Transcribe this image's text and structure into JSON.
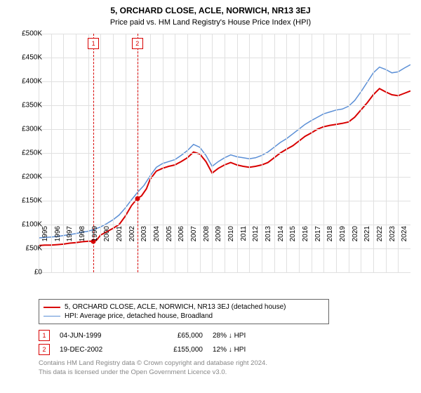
{
  "title": "5, ORCHARD CLOSE, ACLE, NORWICH, NR13 3EJ",
  "subtitle": "Price paid vs. HM Land Registry's House Price Index (HPI)",
  "chart": {
    "type": "line",
    "background_color": "#ffffff",
    "grid_color": "#e0e0e0",
    "x": {
      "min": 1995,
      "max": 2025,
      "ticks": [
        1995,
        1996,
        1997,
        1998,
        1999,
        2000,
        2001,
        2002,
        2003,
        2004,
        2005,
        2006,
        2007,
        2008,
        2009,
        2010,
        2011,
        2012,
        2013,
        2014,
        2015,
        2016,
        2017,
        2018,
        2019,
        2020,
        2021,
        2022,
        2023,
        2024
      ]
    },
    "y": {
      "min": 0,
      "max": 500000,
      "step": 50000,
      "prefix": "£",
      "tick_labels": [
        "£0",
        "£50K",
        "£100K",
        "£150K",
        "£200K",
        "£250K",
        "£300K",
        "£350K",
        "£400K",
        "£450K",
        "£500K"
      ]
    },
    "label_fontsize": 10,
    "series": [
      {
        "name": "5, ORCHARD CLOSE, ACLE, NORWICH, NR13 3EJ (detached house)",
        "color": "#d80000",
        "width": 2,
        "data": [
          [
            1995.0,
            56000
          ],
          [
            1995.5,
            57000
          ],
          [
            1996.0,
            57000
          ],
          [
            1996.5,
            58000
          ],
          [
            1997.0,
            59000
          ],
          [
            1997.5,
            61000
          ],
          [
            1998.0,
            62000
          ],
          [
            1998.5,
            64000
          ],
          [
            1999.0,
            65000
          ],
          [
            1999.42,
            65000
          ],
          [
            1999.7,
            68000
          ],
          [
            2000.0,
            78000
          ],
          [
            2000.5,
            85000
          ],
          [
            2001.0,
            92000
          ],
          [
            2001.5,
            100000
          ],
          [
            2002.0,
            118000
          ],
          [
            2002.5,
            140000
          ],
          [
            2002.97,
            155000
          ],
          [
            2003.3,
            160000
          ],
          [
            2003.7,
            175000
          ],
          [
            2004.0,
            195000
          ],
          [
            2004.5,
            212000
          ],
          [
            2005.0,
            218000
          ],
          [
            2005.5,
            222000
          ],
          [
            2006.0,
            225000
          ],
          [
            2006.5,
            232000
          ],
          [
            2007.0,
            240000
          ],
          [
            2007.5,
            252000
          ],
          [
            2008.0,
            248000
          ],
          [
            2008.5,
            232000
          ],
          [
            2009.0,
            208000
          ],
          [
            2009.5,
            218000
          ],
          [
            2010.0,
            225000
          ],
          [
            2010.5,
            230000
          ],
          [
            2011.0,
            225000
          ],
          [
            2011.5,
            222000
          ],
          [
            2012.0,
            220000
          ],
          [
            2012.5,
            222000
          ],
          [
            2013.0,
            225000
          ],
          [
            2013.5,
            230000
          ],
          [
            2014.0,
            240000
          ],
          [
            2014.5,
            250000
          ],
          [
            2015.0,
            258000
          ],
          [
            2015.5,
            265000
          ],
          [
            2016.0,
            275000
          ],
          [
            2016.5,
            285000
          ],
          [
            2017.0,
            292000
          ],
          [
            2017.5,
            300000
          ],
          [
            2018.0,
            305000
          ],
          [
            2018.5,
            308000
          ],
          [
            2019.0,
            310000
          ],
          [
            2019.5,
            312000
          ],
          [
            2020.0,
            315000
          ],
          [
            2020.5,
            325000
          ],
          [
            2021.0,
            340000
          ],
          [
            2021.5,
            355000
          ],
          [
            2022.0,
            372000
          ],
          [
            2022.5,
            385000
          ],
          [
            2023.0,
            378000
          ],
          [
            2023.5,
            372000
          ],
          [
            2024.0,
            370000
          ],
          [
            2024.5,
            375000
          ],
          [
            2025.0,
            380000
          ]
        ]
      },
      {
        "name": "HPI: Average price, detached house, Broadland",
        "color": "#5b8fd6",
        "width": 1.5,
        "data": [
          [
            1995.0,
            72000
          ],
          [
            1995.5,
            73000
          ],
          [
            1996.0,
            74000
          ],
          [
            1996.5,
            75000
          ],
          [
            1997.0,
            77000
          ],
          [
            1997.5,
            79000
          ],
          [
            1998.0,
            81000
          ],
          [
            1998.5,
            84000
          ],
          [
            1999.0,
            86000
          ],
          [
            1999.5,
            90000
          ],
          [
            2000.0,
            95000
          ],
          [
            2000.5,
            102000
          ],
          [
            2001.0,
            110000
          ],
          [
            2001.5,
            120000
          ],
          [
            2002.0,
            135000
          ],
          [
            2002.5,
            152000
          ],
          [
            2003.0,
            168000
          ],
          [
            2003.5,
            182000
          ],
          [
            2004.0,
            202000
          ],
          [
            2004.5,
            220000
          ],
          [
            2005.0,
            228000
          ],
          [
            2005.5,
            232000
          ],
          [
            2006.0,
            236000
          ],
          [
            2006.5,
            245000
          ],
          [
            2007.0,
            255000
          ],
          [
            2007.5,
            268000
          ],
          [
            2008.0,
            262000
          ],
          [
            2008.5,
            245000
          ],
          [
            2009.0,
            222000
          ],
          [
            2009.5,
            232000
          ],
          [
            2010.0,
            240000
          ],
          [
            2010.5,
            246000
          ],
          [
            2011.0,
            242000
          ],
          [
            2011.5,
            240000
          ],
          [
            2012.0,
            238000
          ],
          [
            2012.5,
            240000
          ],
          [
            2013.0,
            245000
          ],
          [
            2013.5,
            252000
          ],
          [
            2014.0,
            262000
          ],
          [
            2014.5,
            272000
          ],
          [
            2015.0,
            280000
          ],
          [
            2015.5,
            290000
          ],
          [
            2016.0,
            300000
          ],
          [
            2016.5,
            310000
          ],
          [
            2017.0,
            318000
          ],
          [
            2017.5,
            325000
          ],
          [
            2018.0,
            332000
          ],
          [
            2018.5,
            336000
          ],
          [
            2019.0,
            340000
          ],
          [
            2019.5,
            342000
          ],
          [
            2020.0,
            348000
          ],
          [
            2020.5,
            360000
          ],
          [
            2021.0,
            378000
          ],
          [
            2021.5,
            398000
          ],
          [
            2022.0,
            418000
          ],
          [
            2022.5,
            430000
          ],
          [
            2023.0,
            425000
          ],
          [
            2023.5,
            418000
          ],
          [
            2024.0,
            420000
          ],
          [
            2024.5,
            428000
          ],
          [
            2025.0,
            435000
          ]
        ]
      }
    ],
    "sale_markers": [
      {
        "label": "1",
        "x": 1999.42,
        "y": 65000
      },
      {
        "label": "2",
        "x": 2002.97,
        "y": 155000
      }
    ]
  },
  "legend": {
    "border_color": "#666666"
  },
  "sales": [
    {
      "badge": "1",
      "date": "04-JUN-1999",
      "price": "£65,000",
      "delta": "28% ↓ HPI"
    },
    {
      "badge": "2",
      "date": "19-DEC-2002",
      "price": "£155,000",
      "delta": "12% ↓ HPI"
    }
  ],
  "footnote_line1": "Contains HM Land Registry data © Crown copyright and database right 2024.",
  "footnote_line2": "This data is licensed under the Open Government Licence v3.0."
}
